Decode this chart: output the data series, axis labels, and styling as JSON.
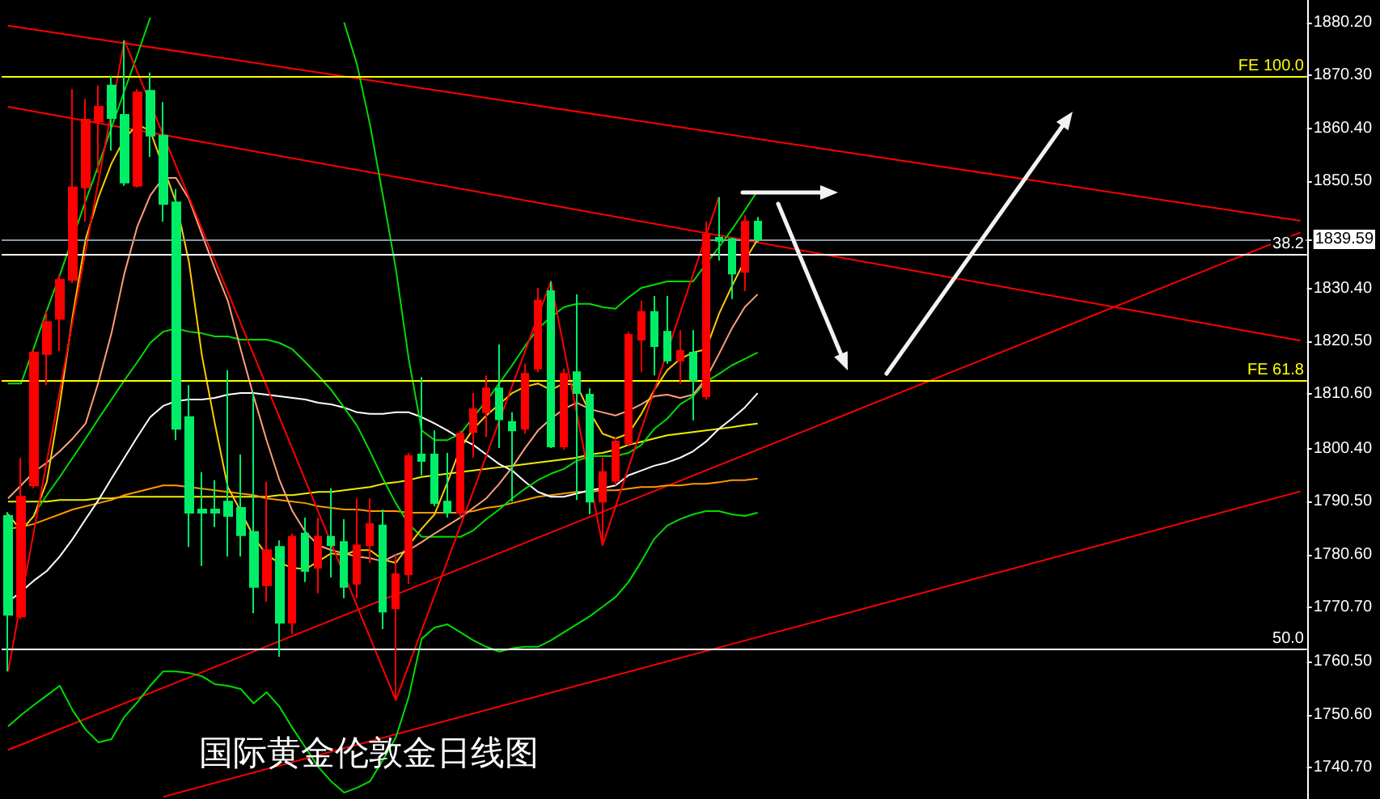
{
  "chart_data": {
    "type": "candlestick",
    "title": "国际黄金伦敦金日线图",
    "categories": [
      null,
      null,
      null,
      null,
      null,
      null,
      null,
      null,
      null,
      null,
      null,
      null,
      null,
      null,
      null,
      null,
      null,
      null,
      null,
      null,
      null,
      null,
      null,
      null,
      null,
      null,
      null,
      null,
      null,
      null,
      null,
      null,
      null,
      null,
      null,
      null,
      null,
      null,
      null,
      null,
      null,
      null,
      null,
      null,
      null,
      null,
      null,
      null,
      null,
      null,
      null,
      null,
      null,
      null,
      null,
      null,
      null,
      null,
      null
    ],
    "ohlc": [
      [
        1787.8,
        1788.5,
        1758.7,
        1769.3
      ],
      [
        1769.0,
        1798.7,
        1768.5,
        1791.4
      ],
      [
        1793.5,
        1818.9,
        1793.0,
        1818.4
      ],
      [
        1818.1,
        1826.3,
        1812.3,
        1824.1
      ],
      [
        1824.7,
        1832.9,
        1818.7,
        1832.0
      ],
      [
        1832.0,
        1867.7,
        1831.4,
        1849.3
      ],
      [
        1849.3,
        1865.9,
        1842.9,
        1862.0
      ],
      [
        1861.7,
        1868.4,
        1852.0,
        1864.4
      ],
      [
        1868.4,
        1870.2,
        1856.2,
        1862.3
      ],
      [
        1862.9,
        1876.8,
        1849.6,
        1850.2
      ],
      [
        1849.6,
        1867.7,
        1849.3,
        1867.1
      ],
      [
        1867.4,
        1870.8,
        1855.0,
        1859.0
      ],
      [
        1859.0,
        1865.3,
        1842.9,
        1846.2
      ],
      [
        1846.5,
        1849.0,
        1802.0,
        1804.1
      ],
      [
        1806.3,
        1812.3,
        1782.0,
        1788.4
      ],
      [
        1789.0,
        1796.0,
        1778.4,
        1788.4
      ],
      [
        1789.0,
        1794.5,
        1785.7,
        1788.4
      ],
      [
        1790.5,
        1815.1,
        1780.2,
        1787.8
      ],
      [
        1789.3,
        1799.3,
        1780.2,
        1784.2
      ],
      [
        1784.8,
        1810.8,
        1769.6,
        1774.5
      ],
      [
        1774.8,
        1794.2,
        1771.7,
        1781.4
      ],
      [
        1782.0,
        1783.2,
        1761.4,
        1767.8
      ],
      [
        1767.8,
        1784.5,
        1765.7,
        1783.9
      ],
      [
        1784.5,
        1787.5,
        1775.4,
        1777.5
      ],
      [
        1778.1,
        1787.5,
        1773.3,
        1783.9
      ],
      [
        1783.9,
        1793.0,
        1776.3,
        1782.3
      ],
      [
        1782.9,
        1787.2,
        1772.4,
        1774.5
      ],
      [
        1775.1,
        1791.1,
        1772.4,
        1782.3
      ],
      [
        1782.3,
        1791.1,
        1779.0,
        1786.3
      ],
      [
        1786.0,
        1789.0,
        1766.6,
        1769.9
      ],
      [
        1770.5,
        1780.5,
        1753.3,
        1776.9
      ],
      [
        1776.9,
        1799.6,
        1775.1,
        1799.0
      ],
      [
        1799.3,
        1813.8,
        1795.4,
        1798.1
      ],
      [
        1799.3,
        1803.8,
        1789.6,
        1790.2
      ],
      [
        1790.5,
        1799.6,
        1787.5,
        1788.4
      ],
      [
        1788.4,
        1803.8,
        1787.5,
        1803.2
      ],
      [
        1803.5,
        1810.8,
        1798.7,
        1807.8
      ],
      [
        1807.2,
        1814.1,
        1802.6,
        1811.7
      ],
      [
        1811.7,
        1819.9,
        1800.5,
        1805.9
      ],
      [
        1805.4,
        1807.2,
        1790.5,
        1803.8
      ],
      [
        1804.1,
        1816.3,
        1803.2,
        1814.4
      ],
      [
        1815.4,
        1830.5,
        1814.7,
        1828.1
      ],
      [
        1829.9,
        1831.7,
        1800.5,
        1800.8
      ],
      [
        1800.8,
        1815.4,
        1800.2,
        1814.4
      ],
      [
        1814.7,
        1829.3,
        1790.8,
        1810.8
      ],
      [
        1810.5,
        1811.7,
        1788.1,
        1790.5
      ],
      [
        1790.5,
        1798.7,
        1782.3,
        1796.0
      ],
      [
        1794.4,
        1802.6,
        1793.5,
        1801.7
      ],
      [
        1801.4,
        1822.3,
        1800.8,
        1821.7
      ],
      [
        1820.8,
        1828.1,
        1814.7,
        1826.0
      ],
      [
        1826.0,
        1829.0,
        1814.1,
        1819.6
      ],
      [
        1822.3,
        1829.0,
        1816.3,
        1816.9
      ],
      [
        1816.9,
        1822.6,
        1812.6,
        1818.7
      ],
      [
        1818.4,
        1822.6,
        1805.7,
        1813.2
      ],
      [
        1810.2,
        1842.9,
        1809.6,
        1840.5
      ],
      [
        1839.9,
        1847.5,
        1835.6,
        1839.3
      ],
      [
        1839.6,
        1839.9,
        1828.4,
        1833.2
      ],
      [
        1833.5,
        1844.1,
        1829.9,
        1842.9
      ],
      [
        1842.9,
        1843.8,
        1839.0,
        1839.59
      ]
    ],
    "colors": [
      "#00ee66",
      "#ff0000",
      "#ff0000",
      "#ff0000",
      "#ff0000",
      "#ff0000",
      "#ff0000",
      "#ff0000",
      "#00ee66",
      "#00ee66",
      "#ff0000",
      "#00ee66",
      "#00ee66",
      "#00ee66",
      "#00ee66",
      "#00ee66",
      "#00ee66",
      "#00ee66",
      "#00ee66",
      "#00ee66",
      "#ff0000",
      "#00ee66",
      "#ff0000",
      "#00ee66",
      "#ff0000",
      "#00ee66",
      "#00ee66",
      "#ff0000",
      "#ff0000",
      "#00ee66",
      "#ff0000",
      "#ff0000",
      "#00ee66",
      "#00ee66",
      "#00ee66",
      "#ff0000",
      "#ff0000",
      "#ff0000",
      "#00ee66",
      "#00ee66",
      "#ff0000",
      "#ff0000",
      "#00ee66",
      "#ff0000",
      "#00ee66",
      "#00ee66",
      "#ff0000",
      "#ff0000",
      "#ff0000",
      "#ff0000",
      "#00ee66",
      "#00ee66",
      "#ff0000",
      "#00ee66",
      "#ff0000",
      "#00ee66",
      "#00ee66",
      "#ff0000",
      "#00ee66"
    ],
    "series": [
      {
        "type": "line",
        "color": "#ff0000",
        "values": [
          1879.6,
          null,
          null,
          null,
          null,
          null,
          null,
          null,
          null,
          null,
          null,
          null,
          null,
          null,
          null,
          null,
          null,
          null,
          null,
          null,
          null,
          null,
          null,
          null,
          null,
          null,
          null,
          null,
          null,
          null,
          null,
          null,
          null,
          null,
          null,
          null,
          null,
          null,
          null,
          null,
          null,
          null,
          null,
          null,
          null,
          null,
          null,
          null,
          null,
          null,
          null,
          null,
          null,
          null,
          null,
          null,
          null,
          null,
          1858.4
        ]
      },
      {
        "type": "line",
        "color": "#ff0000",
        "values": [
          1864.4,
          null,
          null,
          null,
          null,
          null,
          null,
          null,
          null,
          null,
          null,
          null,
          null,
          null,
          null,
          null,
          null,
          null,
          null,
          null,
          null,
          null,
          null,
          null,
          null,
          null,
          null,
          null,
          null,
          null,
          null,
          null,
          null,
          null,
          null,
          null,
          null,
          null,
          null,
          null,
          null,
          null,
          null,
          null,
          null,
          null,
          null,
          null,
          null,
          null,
          null,
          null,
          null,
          null,
          null,
          null,
          null,
          null,
          1839.0
        ]
      },
      {
        "type": "line",
        "color": "#ff0000",
        "values": [
          1744.0,
          null,
          null,
          null,
          null,
          null,
          null,
          null,
          null,
          null,
          null,
          null,
          null,
          null,
          null,
          null,
          null,
          null,
          null,
          null,
          null,
          null,
          null,
          null,
          null,
          null,
          null,
          null,
          null,
          null,
          null,
          null,
          null,
          null,
          null,
          null,
          null,
          null,
          null,
          null,
          null,
          null,
          null,
          null,
          null,
          null,
          null,
          null,
          null,
          null,
          null,
          null,
          null,
          null,
          null,
          null,
          null,
          null,
          1800.2
        ]
      },
      {
        "type": "line",
        "color": "#ff0000",
        "values": [
          null,
          null,
          null,
          null,
          null,
          null,
          null,
          null,
          null,
          null,
          null,
          null,
          1735.2,
          null,
          null,
          null,
          null,
          null,
          null,
          null,
          null,
          null,
          null,
          null,
          null,
          null,
          null,
          null,
          null,
          null,
          null,
          null,
          null,
          null,
          null,
          null,
          null,
          null,
          null,
          null,
          null,
          null,
          null,
          null,
          null,
          null,
          null,
          null,
          null,
          null,
          null,
          null,
          null,
          null,
          null,
          null,
          null,
          null,
          1765.1
        ]
      },
      {
        "type": "line",
        "color": "#eeee00",
        "values": [
          1790.5,
          1790.5,
          1790.5,
          1790.5,
          1790.8,
          1790.8,
          1790.8,
          1791.1,
          1791.1,
          1791.4,
          1791.4,
          1791.4,
          1791.4,
          1791.4,
          1791.4,
          1791.4,
          1791.4,
          1791.4,
          1791.4,
          1791.4,
          1791.4,
          1791.7,
          1791.7,
          1792.0,
          1792.3,
          1792.3,
          1792.6,
          1792.9,
          1793.2,
          1793.8,
          1794.1,
          1794.5,
          1795.1,
          1795.4,
          1795.7,
          1796.0,
          1796.3,
          1796.6,
          1796.9,
          1797.2,
          1797.5,
          1797.8,
          1798.1,
          1798.4,
          1798.7,
          1799.3,
          1799.6,
          1800.2,
          1801.1,
          1801.7,
          1802.3,
          1802.9,
          1803.2,
          1803.5,
          1803.8,
          1804.1,
          1804.4,
          1804.8,
          1805.1
        ]
      },
      {
        "type": "line",
        "color": "#ff9900",
        "values": [
          1785.4,
          1785.7,
          1786.3,
          1787.2,
          1788.1,
          1789.0,
          1789.6,
          1790.2,
          1790.8,
          1791.7,
          1792.3,
          1792.9,
          1793.5,
          1793.5,
          1793.2,
          1792.9,
          1792.6,
          1792.3,
          1792.0,
          1791.7,
          1791.1,
          1790.8,
          1790.5,
          1790.2,
          1789.6,
          1789.3,
          1789.0,
          1789.0,
          1788.7,
          1788.7,
          1788.7,
          1788.4,
          1788.4,
          1788.4,
          1788.4,
          1788.4,
          1788.7,
          1789.3,
          1789.6,
          1790.2,
          1790.8,
          1791.4,
          1791.7,
          1792.0,
          1792.3,
          1792.3,
          1792.6,
          1792.6,
          1792.9,
          1793.2,
          1793.2,
          1793.5,
          1793.5,
          1793.8,
          1793.8,
          1794.1,
          1794.5,
          1794.5,
          1794.8
        ]
      },
      {
        "type": "line",
        "color": "#ffffff",
        "values": [
          1771.7,
          1773.6,
          1775.7,
          1777.5,
          1780.2,
          1783.5,
          1787.2,
          1790.8,
          1794.8,
          1798.7,
          1802.6,
          1806.3,
          1808.4,
          1809.3,
          1809.6,
          1809.6,
          1809.9,
          1810.5,
          1810.8,
          1810.8,
          1810.5,
          1810.2,
          1809.9,
          1809.6,
          1809.0,
          1808.7,
          1808.1,
          1807.2,
          1806.9,
          1806.9,
          1807.2,
          1807.2,
          1806.3,
          1805.1,
          1803.8,
          1802.3,
          1801.1,
          1799.3,
          1797.5,
          1796.3,
          1794.2,
          1792.3,
          1791.4,
          1791.4,
          1792.0,
          1792.6,
          1793.0,
          1793.5,
          1795.4,
          1796.3,
          1797.2,
          1797.8,
          1798.7,
          1799.9,
          1801.7,
          1804.1,
          1806.0,
          1808.1,
          1810.8
        ]
      },
      {
        "type": "line",
        "color": "#00dd00",
        "values": [
          null,
          null,
          1788.1,
          1791.7,
          1795.1,
          1798.7,
          1802.3,
          1806.0,
          1809.6,
          1813.2,
          1816.6,
          1820.2,
          1822.3,
          1822.9,
          1822.3,
          1822.0,
          1821.4,
          1821.4,
          1820.8,
          1820.8,
          1820.8,
          1820.2,
          1819.0,
          1816.6,
          1814.1,
          1811.4,
          1808.1,
          1804.7,
          1799.9,
          1794.8,
          1790.2,
          1786.3,
          1783.9,
          1783.9,
          1783.9,
          1783.9,
          1785.1,
          1787.2,
          1789.0,
          1791.1,
          1792.9,
          1794.5,
          1795.7,
          1796.6,
          1798.1,
          1799.0,
          1799.0,
          1799.0,
          1799.6,
          1801.1,
          1804.1,
          1806.0,
          1808.7,
          1810.2,
          1812.9,
          1814.4,
          1816.0,
          1817.2,
          1818.4
        ]
      },
      {
        "type": "line",
        "color": "#00dd00",
        "values": [
          1812.6,
          1812.6,
          1819.3,
          1826.3,
          1832.9,
          null,
          1846.8,
          1853.5,
          1860.5,
          1867.4,
          1874.1,
          1881.1,
          null,
          null,
          null,
          null,
          null,
          null,
          null,
          null,
          null,
          null,
          null,
          null,
          null,
          null,
          null,
          null,
          null,
          null,
          null,
          null,
          null,
          null,
          null,
          null,
          null,
          null,
          null,
          null,
          null,
          null,
          null,
          null,
          null,
          null,
          null,
          null,
          null,
          null,
          null,
          null,
          null,
          null,
          null,
          null,
          null,
          null,
          null
        ]
      },
      {
        "type": "line",
        "color": "#00dd00",
        "values": [
          null,
          null,
          null,
          null,
          null,
          null,
          null,
          null,
          null,
          null,
          null,
          null,
          null,
          null,
          null,
          null,
          null,
          null,
          null,
          null,
          null,
          null,
          null,
          null,
          null,
          null,
          1880.2,
          1872.3,
          1861.1,
          1847.8,
          1834.1,
          1817.2,
          1803.8,
          1802.0,
          1802.0,
          1803.2,
          1806.3,
          1809.3,
          1812.6,
          1816.0,
          1819.6,
          1822.9,
          1825.0,
          1826.9,
          1827.5,
          1827.5,
          1826.9,
          1826.6,
          1828.7,
          1830.5,
          1831.1,
          1831.7,
          1831.7,
          1831.7,
          1835.0,
          1838.1,
          1841.4,
          1845.0,
          1848.7
        ]
      },
      {
        "type": "line",
        "color": "#00dd00",
        "values": [
          1748.4,
          1750.5,
          1752.4,
          1754.2,
          1756.0,
          1751.4,
          1747.8,
          1745.4,
          1746.0,
          1750.2,
          1752.9,
          1756.0,
          1758.7,
          1758.7,
          1758.4,
          1757.8,
          1756.3,
          1756.0,
          1755.4,
          1752.7,
          1754.8,
          1752.1,
          1748.1,
          1744.5,
          1740.8,
          1738.1,
          1736.0,
          1736.9,
          1738.1,
          1742.1,
          1746.3,
          1753.9,
          1764.8,
          1766.9,
          1767.5,
          1766.0,
          1764.5,
          1763.3,
          1762.4,
          1763.0,
          1763.3,
          1763.3,
          1764.5,
          1766.0,
          1767.5,
          1769.0,
          1770.8,
          1772.6,
          1775.4,
          1779.3,
          1783.5,
          1786.0,
          1787.2,
          1788.1,
          1788.7,
          1788.7,
          1788.1,
          1787.8,
          1788.4
        ]
      },
      {
        "type": "line",
        "color": "#ffa07a",
        "values": [
          1791.1,
          1793.5,
          1796.0,
          1797.8,
          1799.9,
          1802.3,
          1805.1,
          1812.9,
          1822.0,
          1833.2,
          1842.0,
          1847.8,
          1851.1,
          1851.1,
          1847.1,
          1840.5,
          1834.1,
          1828.1,
          1819.0,
          1810.2,
          1802.0,
          1794.5,
          1788.7,
          1784.8,
          1782.3,
          1781.4,
          1780.8,
          1780.2,
          1779.9,
          1779.3,
          1780.5,
          1781.4,
          1782.9,
          1784.5,
          1786.0,
          1787.5,
          1789.3,
          1791.1,
          1793.8,
          1796.9,
          1800.5,
          1803.8,
          1806.0,
          1807.8,
          1809.0,
          1807.8,
          1807.2,
          1806.6,
          1807.5,
          1808.7,
          1810.2,
          1810.5,
          1809.9,
          1810.5,
          1813.5,
          1818.1,
          1822.9,
          1826.9,
          1829.3
        ]
      },
      {
        "type": "line",
        "color": "#ffcc00",
        "values": [
          1788.1,
          1785.1,
          1787.8,
          1794.2,
          1808.7,
          1825.3,
          1839.6,
          1847.5,
          1853.8,
          1858.4,
          1861.1,
          1859.9,
          null,
          1846.5,
          1835.3,
          1817.8,
          1805.1,
          1793.2,
          1788.7,
          1783.9,
          1780.5,
          1779.0,
          1778.1,
          1777.8,
          1779.3,
          1780.8,
          1780.5,
          1781.4,
          1781.4,
          1779.6,
          1779.0,
          1782.3,
          1785.4,
          1788.1,
          1794.1,
          1800.5,
          1804.1,
          1806.6,
          1808.7,
          1810.8,
          1812.0,
          1812.6,
          1811.4,
          1812.6,
          1812.3,
          1807.2,
          1803.2,
          1802.3,
          1803.2,
          1806.9,
          1811.4,
          1815.1,
          1817.2,
          1818.4,
          1819.0,
          1825.6,
          1830.8,
          1835.6,
          1839.6
        ]
      },
      {
        "type": "line",
        "color": "#ff0000",
        "values": [
          1758.7,
          null,
          null,
          null,
          null,
          null,
          null,
          null,
          null,
          1876.8,
          null,
          null,
          null,
          null,
          null,
          null,
          null,
          null,
          null,
          null,
          null,
          null,
          null,
          null,
          null,
          null,
          null,
          null,
          null,
          null,
          1753.3,
          null,
          null,
          null,
          null,
          null,
          null,
          null,
          null,
          null,
          null,
          null,
          1831.7,
          null,
          null,
          null,
          1782.3,
          null,
          null,
          null,
          null,
          null,
          null,
          null,
          null,
          1847.5,
          null,
          null,
          null
        ]
      }
    ],
    "ylim": [
      1734.8,
      1884.4
    ],
    "yticks": [
      {
        "value": 1880.2,
        "label": "1880.20"
      },
      {
        "value": 1870.3,
        "label": "1870.30"
      },
      {
        "value": 1860.4,
        "label": "1860.40"
      },
      {
        "value": 1850.5,
        "label": "1850.50"
      },
      1839.59,
      {
        "value": 1830.4,
        "label": "1830.40"
      },
      {
        "value": 1820.5,
        "label": "1820.50"
      },
      {
        "value": 1810.6,
        "label": "1810.60"
      },
      {
        "value": 1800.4,
        "label": "1800.40"
      },
      {
        "value": 1790.5,
        "label": "1790.50"
      },
      {
        "value": 1780.6,
        "label": "1780.60"
      },
      {
        "value": 1770.7,
        "label": "1770.70"
      },
      {
        "value": 1760.5,
        "label": "1760.50"
      },
      {
        "value": 1750.6,
        "label": "1750.60"
      },
      {
        "value": 1740.7,
        "label": "1740.70"
      }
    ],
    "ref_lines": [
      {
        "axis": "y",
        "value": 1870.2,
        "color": "#ffff00"
      },
      {
        "axis": "y",
        "value": 1839.59,
        "color": "#8899aa"
      },
      {
        "axis": "y",
        "value": 1836.8,
        "color": "#ffffff"
      },
      {
        "axis": "y",
        "value": 1813.3,
        "color": "#ffff00"
      },
      {
        "axis": "y",
        "value": 1763.0,
        "color": "#ffffff"
      }
    ],
    "annotations": [
      {
        "text": "FE 100.0",
        "y": 1870.2
      },
      {
        "text": "38.2",
        "y": 1836.8
      },
      {
        "text": "FE 61.8",
        "y": 1813.3
      },
      {
        "text": "50.0",
        "y": 1763.0
      }
    ],
    "tick_labels": "y"
  }
}
